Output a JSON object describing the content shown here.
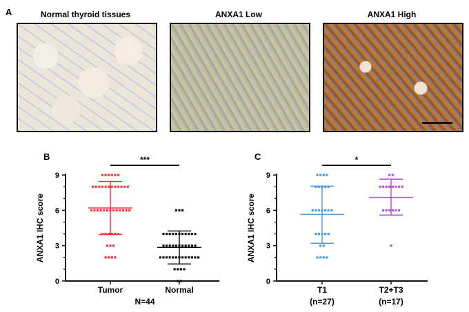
{
  "panel_a": {
    "label": "A",
    "images": [
      {
        "title": "Normal thyroid tissues"
      },
      {
        "title": "ANXA1 Low"
      },
      {
        "title": "ANXA1 High"
      }
    ]
  },
  "chart_data": [
    {
      "type": "scatter",
      "panel": "B",
      "ylabel": "ANXA1 IHC score",
      "ylim": [
        0,
        9
      ],
      "yticks": [
        0,
        3,
        6,
        9
      ],
      "categories": [
        "Tumor",
        "Normal"
      ],
      "xcaption": "N=44",
      "significance": "***",
      "series": [
        {
          "name": "Tumor",
          "color": "#e8383d",
          "points": {
            "9": 6,
            "8": 12,
            "6": 13,
            "4": 6,
            "3": 3,
            "2": 4
          },
          "mean": 6.2,
          "sd_upper": 8.45,
          "sd_lower": 3.95
        },
        {
          "name": "Normal",
          "color": "#111111",
          "points": {
            "6": 3,
            "4": 11,
            "3": 11,
            "2": 13,
            "1": 4,
            "0": 2
          },
          "mean": 2.85,
          "sd_upper": 4.25,
          "sd_lower": 1.45
        }
      ]
    },
    {
      "type": "scatter",
      "panel": "C",
      "ylabel": "ANXA1 IHC score",
      "ylim": [
        0,
        9
      ],
      "yticks": [
        0,
        3,
        6,
        9
      ],
      "categories": [
        "T1",
        "T2+T3"
      ],
      "category_sublabels": [
        "(n=27)",
        "(n=17)"
      ],
      "significance": "*",
      "series": [
        {
          "name": "T1",
          "color": "#4a9be8",
          "points": {
            "9": 4,
            "8": 5,
            "6": 7,
            "4": 5,
            "3": 2,
            "2": 4
          },
          "mean": 5.65,
          "sd_upper": 8.05,
          "sd_lower": 3.2
        },
        {
          "name": "T2+T3",
          "color": "#b352d6",
          "points": {
            "9": 2,
            "8": 8,
            "6": 6,
            "3": 1
          },
          "mean": 7.1,
          "sd_upper": 8.65,
          "sd_lower": 5.6
        }
      ]
    }
  ]
}
